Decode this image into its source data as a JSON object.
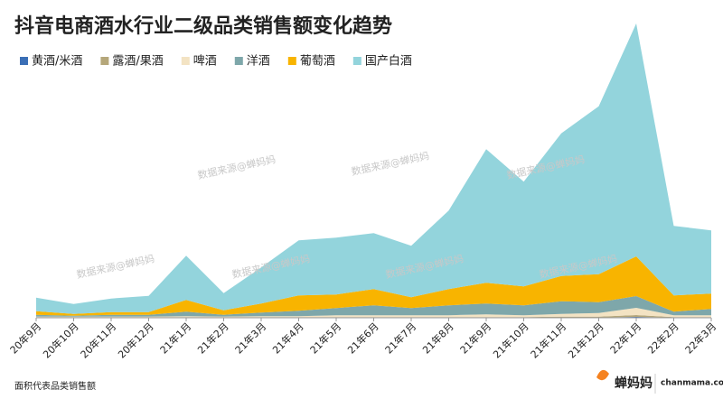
{
  "chart_data": {
    "type": "area",
    "title": "抖音电商酒水行业二级品类销售额变化趋势",
    "note": "面积代表品类销售额",
    "watermark": "数据来源@蝉妈妈",
    "brand": "蝉妈妈",
    "site": "chanmama.com",
    "stacked": true,
    "categories": [
      "20年9月",
      "20年10月",
      "20年11月",
      "20年12月",
      "21年1月",
      "21年2月",
      "21年3月",
      "21年4月",
      "21年5月",
      "21年6月",
      "21年7月",
      "21年8月",
      "21年9月",
      "21年10月",
      "21年11月",
      "21年12月",
      "22年1月",
      "22年2月",
      "22年3月"
    ],
    "ylim": [
      0,
      340
    ],
    "series": [
      {
        "name": "黄酒/米酒",
        "color": "#3b6fb6",
        "values": [
          0.3,
          0.3,
          0.3,
          0.3,
          0.3,
          0.3,
          0.3,
          0.3,
          0.3,
          0.3,
          0.3,
          0.3,
          0.3,
          0.3,
          0.3,
          0.3,
          1,
          0.3,
          0.3
        ]
      },
      {
        "name": "露酒/果酒",
        "color": "#b5a77a",
        "values": [
          0.5,
          0.5,
          0.5,
          0.5,
          0.5,
          0.5,
          0.5,
          0.5,
          0.5,
          0.5,
          0.5,
          0.5,
          0.5,
          0.5,
          1,
          1,
          2,
          0.5,
          0.5
        ]
      },
      {
        "name": "啤酒",
        "color": "#f3e3c3",
        "values": [
          0.5,
          0.5,
          0.5,
          0.5,
          1,
          0.5,
          1,
          1,
          2,
          2,
          2,
          2,
          3,
          2,
          3,
          4,
          8,
          2,
          2
        ]
      },
      {
        "name": "洋酒",
        "color": "#7ea7aa",
        "values": [
          2,
          1,
          2,
          2,
          5,
          2,
          4,
          6,
          8,
          11,
          8,
          11,
          12,
          11,
          14,
          12,
          13,
          4,
          7
        ]
      },
      {
        "name": "葡萄酒",
        "color": "#f8b400",
        "values": [
          4,
          2,
          3,
          3,
          13,
          5,
          10,
          17,
          15,
          18,
          12,
          18,
          23,
          21,
          28,
          31,
          44,
          18,
          17
        ]
      },
      {
        "name": "国产白酒",
        "color": "#93d4dc",
        "values": [
          15,
          11,
          15,
          18,
          49,
          19,
          40,
          61,
          63,
          62,
          57,
          87,
          148,
          116,
          158,
          186,
          258,
          77,
          70
        ]
      }
    ]
  }
}
